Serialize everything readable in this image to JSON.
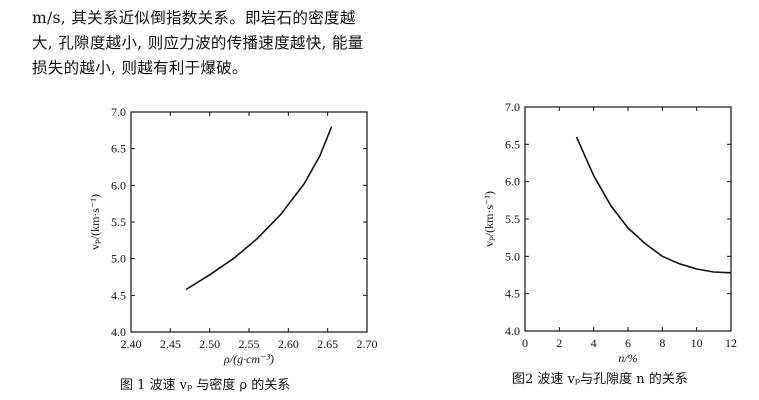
{
  "text": {
    "lines": [
      "m/s, 其关系近似倒指数关系。即岩石的密度越",
      "大, 孔隙度越小, 则应力波的传播速度越快, 能量",
      "损失的越小, 则越有利于爆破。"
    ]
  },
  "chart_data": [
    {
      "type": "line",
      "xlabel": "ρ/(g·cm⁻³)",
      "ylabel": "vₚ/(km·s⁻¹)",
      "xlim": [
        2.4,
        2.7
      ],
      "ylim": [
        4.0,
        7.0
      ],
      "xticks": [
        "2.40",
        "2.45",
        "2.50",
        "2.55",
        "2.60",
        "2.65",
        "2.70"
      ],
      "yticks": [
        "4.0",
        "4.5",
        "5.0",
        "5.5",
        "6.0",
        "6.5",
        "7.0"
      ],
      "series": [
        {
          "x": [
            2.47,
            2.5,
            2.53,
            2.56,
            2.59,
            2.62,
            2.64,
            2.655
          ],
          "y": [
            4.58,
            4.78,
            5.0,
            5.27,
            5.6,
            6.02,
            6.4,
            6.8
          ]
        }
      ],
      "caption": "图 1   波速 vₚ 与密度 ρ 的关系"
    },
    {
      "type": "line",
      "xlabel": "n/%",
      "ylabel": "vₚ/(km·s⁻¹)",
      "xlim": [
        0,
        12
      ],
      "ylim": [
        4.0,
        7.0
      ],
      "xticks": [
        "0",
        "2",
        "4",
        "6",
        "8",
        "10",
        "12"
      ],
      "yticks": [
        "4.0",
        "4.5",
        "5.0",
        "5.5",
        "6.0",
        "6.5",
        "7.0"
      ],
      "series": [
        {
          "x": [
            3.0,
            4.0,
            5.0,
            6.0,
            7.0,
            8.0,
            9.0,
            10.0,
            11.0,
            12.0
          ],
          "y": [
            6.6,
            6.08,
            5.68,
            5.38,
            5.17,
            5.0,
            4.9,
            4.83,
            4.79,
            4.78
          ]
        }
      ],
      "caption": "图2  波速 vₚ与孔隙度 n 的关系"
    }
  ]
}
